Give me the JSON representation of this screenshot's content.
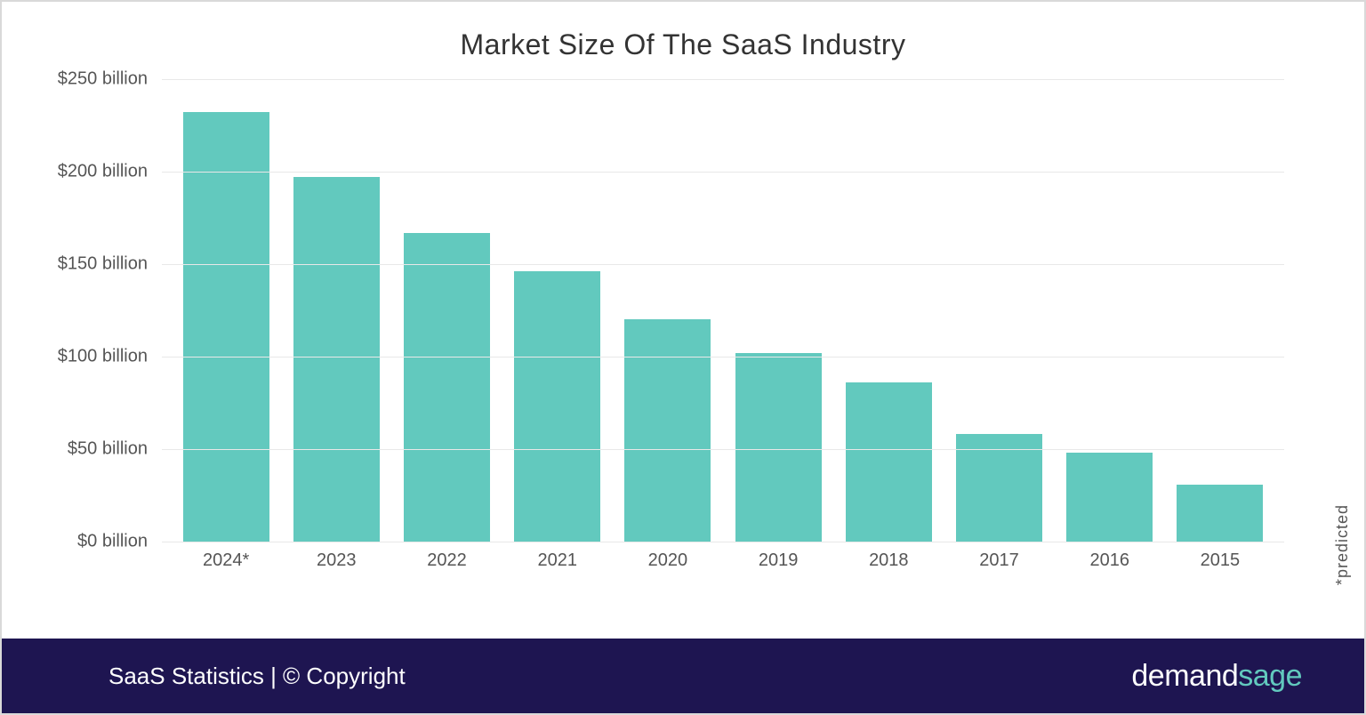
{
  "chart": {
    "type": "bar",
    "title": "Market Size Of The SaaS Industry",
    "title_fontsize": 32,
    "title_color": "#333333",
    "categories": [
      "2024*",
      "2023",
      "2022",
      "2021",
      "2020",
      "2019",
      "2018",
      "2017",
      "2016",
      "2015"
    ],
    "values": [
      232,
      197,
      167,
      146,
      120,
      102,
      86,
      58,
      48,
      31
    ],
    "bar_color": "#62c9be",
    "bar_width_pct": 78,
    "ylim": [
      0,
      250
    ],
    "ytick_step": 50,
    "yticks": [
      0,
      50,
      100,
      150,
      200,
      250
    ],
    "ytick_labels": [
      "$0 billion",
      "$50 billion",
      "$100 billion",
      "$150 billion",
      "$200 billion",
      "$250 billion"
    ],
    "axis_label_fontsize": 20,
    "axis_label_color": "#555555",
    "grid_color": "#e8e8e8",
    "background_color": "#ffffff",
    "side_note": "*predicted"
  },
  "footer": {
    "left_text": "SaaS Statistics | © Copyright",
    "brand_prefix": "demand",
    "brand_suffix": "sage",
    "background_color": "#1e1551",
    "text_color": "#ffffff",
    "accent_color": "#62c9be",
    "left_fontsize": 26,
    "brand_fontsize": 34
  },
  "frame": {
    "border_color": "#d9d9d9"
  }
}
